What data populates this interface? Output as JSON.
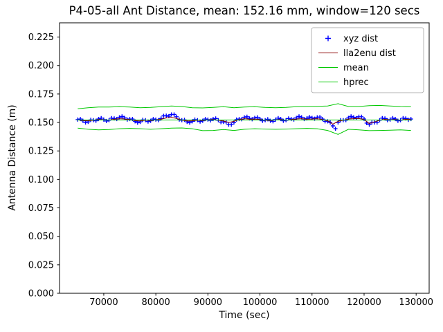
{
  "chart_data": {
    "type": "line",
    "title": "P4-05-all Ant Distance, mean: 152.16 mm, window=120 secs",
    "xlabel": "Time (sec)",
    "ylabel": "Antenna Distance (m)",
    "mean_mm": 152.16,
    "window_secs": 120,
    "xlim": [
      61500,
      132500
    ],
    "ylim": [
      0.0,
      0.2375
    ],
    "xticks": [
      70000,
      80000,
      90000,
      100000,
      110000,
      120000,
      130000
    ],
    "yticks": [
      0.0,
      0.025,
      0.05,
      0.075,
      0.1,
      0.125,
      0.15,
      0.175,
      0.2,
      0.225
    ],
    "ytick_decimals": 3,
    "grid": false,
    "legend_position": "upper right",
    "series": [
      {
        "name": "xyz dist",
        "kind": "scatter",
        "marker": "+",
        "color": "#0000ff",
        "x_start": 65000,
        "x_step": 500,
        "y": [
          0.1525,
          0.153,
          0.1515,
          0.15,
          0.1505,
          0.1523,
          0.152,
          0.1515,
          0.153,
          0.1538,
          0.1525,
          0.1513,
          0.152,
          0.1538,
          0.1535,
          0.153,
          0.1545,
          0.1553,
          0.154,
          0.1525,
          0.153,
          0.153,
          0.151,
          0.1498,
          0.1505,
          0.1523,
          0.152,
          0.1508,
          0.1515,
          0.153,
          0.1525,
          0.152,
          0.1535,
          0.1558,
          0.156,
          0.1555,
          0.157,
          0.157,
          0.155,
          0.1525,
          0.152,
          0.1523,
          0.1505,
          0.1498,
          0.151,
          0.1525,
          0.152,
          0.1508,
          0.1515,
          0.153,
          0.1525,
          0.1518,
          0.153,
          0.1535,
          0.152,
          0.1503,
          0.1505,
          0.1503,
          0.148,
          0.148,
          0.15,
          0.1525,
          0.153,
          0.1528,
          0.1545,
          0.155,
          0.1535,
          0.1528,
          0.154,
          0.1545,
          0.153,
          0.1515,
          0.152,
          0.1528,
          0.1515,
          0.151,
          0.1525,
          0.1538,
          0.153,
          0.1515,
          0.152,
          0.1535,
          0.153,
          0.1525,
          0.154,
          0.1553,
          0.1545,
          0.153,
          0.1535,
          0.1548,
          0.154,
          0.1533,
          0.1545,
          0.1548,
          0.153,
          0.151,
          0.151,
          0.15,
          0.147,
          0.1445,
          0.15,
          0.152,
          0.152,
          0.152,
          0.154,
          0.1553,
          0.1545,
          0.1538,
          0.155,
          0.155,
          0.153,
          0.1495,
          0.148,
          0.15,
          0.15,
          0.15,
          0.152,
          0.1538,
          0.1535,
          0.152,
          0.1525,
          0.1538,
          0.153,
          0.1515,
          0.152,
          0.1538,
          0.1535,
          0.1523,
          0.153
        ]
      },
      {
        "name": "lla2enu dist",
        "kind": "line",
        "color": "#8b0000",
        "width": 1,
        "x_start": 65000,
        "x_step": 1000,
        "y": [
          0.1522,
          0.1518,
          0.1515,
          0.152,
          0.1525,
          0.1523,
          0.1521,
          0.1528,
          0.1533,
          0.153,
          0.1525,
          0.1516,
          0.1513,
          0.152,
          0.1518,
          0.1522,
          0.1528,
          0.154,
          0.1545,
          0.1535,
          0.1521,
          0.1513,
          0.1515,
          0.152,
          0.1518,
          0.1522,
          0.1525,
          0.152,
          0.1513,
          0.15,
          0.151,
          0.1525,
          0.1533,
          0.1528,
          0.153,
          0.1525,
          0.152,
          0.1518,
          0.1522,
          0.1525,
          0.152,
          0.1525,
          0.153,
          0.1533,
          0.1528,
          0.153,
          0.1533,
          0.1525,
          0.1515,
          0.1485,
          0.151,
          0.152,
          0.153,
          0.1533,
          0.1535,
          0.1525,
          0.149,
          0.1505,
          0.152,
          0.1528,
          0.1522,
          0.1525,
          0.152,
          0.1528,
          0.1525
        ]
      },
      {
        "name": "mean",
        "kind": "line",
        "color": "#00c800",
        "width": 1,
        "x": [
          64800,
          129200
        ],
        "y": [
          0.15216,
          0.15216
        ]
      },
      {
        "name": "hprec",
        "kind": "line",
        "color": "#00c800",
        "width": 1,
        "x_start": 65000,
        "x_step": 2000,
        "y": [
          0.162,
          0.163,
          0.1635,
          0.1635,
          0.1638,
          0.1635,
          0.163,
          0.1632,
          0.1638,
          0.1645,
          0.164,
          0.163,
          0.1628,
          0.1632,
          0.1638,
          0.163,
          0.1635,
          0.1638,
          0.1632,
          0.163,
          0.1632,
          0.1638,
          0.164,
          0.1642,
          0.1645,
          0.1665,
          0.164,
          0.164,
          0.1648,
          0.165,
          0.1645,
          0.164,
          0.1638
        ]
      },
      {
        "name": "hprec lower bound",
        "kind": "line",
        "legend": false,
        "color": "#00c800",
        "width": 1,
        "x_start": 65000,
        "x_step": 2000,
        "y": [
          0.145,
          0.144,
          0.1435,
          0.1438,
          0.1445,
          0.1448,
          0.1445,
          0.144,
          0.1445,
          0.145,
          0.1452,
          0.1445,
          0.1428,
          0.143,
          0.1438,
          0.143,
          0.144,
          0.1445,
          0.1442,
          0.144,
          0.1442,
          0.1445,
          0.1448,
          0.1445,
          0.143,
          0.1395,
          0.144,
          0.1435,
          0.1428,
          0.143,
          0.1432,
          0.1435,
          0.143
        ]
      }
    ],
    "legend_labels": [
      "xyz dist",
      "lla2enu dist",
      "mean",
      "hprec"
    ]
  }
}
